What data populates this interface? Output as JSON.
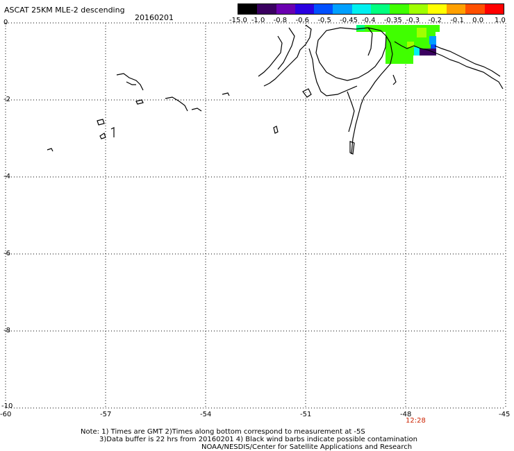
{
  "header": {
    "title": "ASCAT 25KM MLE-2 descending",
    "date": "20160201"
  },
  "colorbar": {
    "labels": [
      "-15.0",
      "-1.0",
      "-0.8",
      "-0.6",
      "-0.5",
      "-0.45",
      "-0.4",
      "-0.35",
      "-0.3",
      "-0.2",
      "-0.1",
      "0.0",
      "1.0"
    ],
    "colors": [
      "#000000",
      "#3a0060",
      "#6a00b0",
      "#2a00e0",
      "#0050ff",
      "#00a0ff",
      "#00f0f0",
      "#00ff80",
      "#40ff00",
      "#a0ff00",
      "#ffff00",
      "#ffa000",
      "#ff5000",
      "#ff0000"
    ]
  },
  "map": {
    "lon_range": [
      -60,
      -45
    ],
    "lat_range": [
      -10,
      0
    ],
    "x_ticks": [
      "-60",
      "-57",
      "-54",
      "-51",
      "-48",
      "-45"
    ],
    "y_ticks": [
      "0",
      "-2",
      "-4",
      "-6",
      "-8",
      "-10"
    ],
    "grid": true,
    "time_label": "12:28"
  },
  "notes": {
    "line1": "Note: 1) Times are GMT 2)Times along bottom correspond to measurement at -5S",
    "line2": "3)Data buffer is 22 hrs from 20160201 4) Black wind barbs indicate possible contamination",
    "line3": "NOAA/NESDIS/Center for Satellite Applications and Research"
  }
}
